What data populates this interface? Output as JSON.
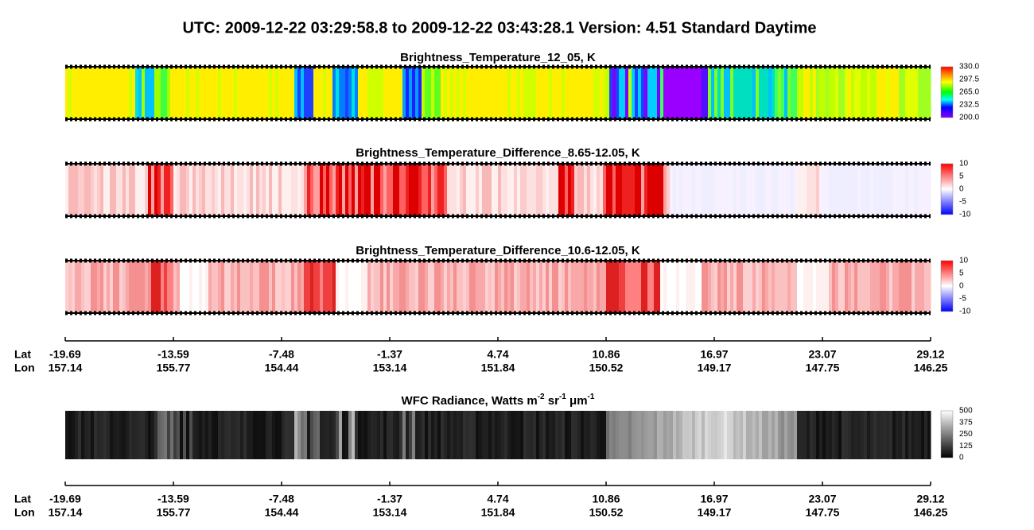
{
  "header": {
    "title": "UTC:  2009-12-22   03:29:58.8  to  2009-12-22   03:43:28.1    Version: 4.51  Standard Daytime"
  },
  "panels": [
    {
      "title": "Brightness_Temperature_12_05, K",
      "colorbar_ticks": [
        "330.0",
        "297.5",
        "265.0",
        "232.5",
        "200.0"
      ]
    },
    {
      "title": "Brightness_Temperature_Difference_8.65-12.05, K",
      "colorbar_ticks": [
        "10",
        "5",
        "0",
        "-5",
        "-10"
      ]
    },
    {
      "title": "Brightness_Temperature_Difference_10.6-12.05, K",
      "colorbar_ticks": [
        "10",
        "5",
        "0",
        "-5",
        "-10"
      ]
    },
    {
      "title_parts": [
        "WFC Radiance, Watts m",
        "-2",
        " sr",
        "-1",
        " μm",
        "-1"
      ],
      "colorbar_ticks": [
        "500",
        "375",
        "250",
        "125",
        "0"
      ]
    }
  ],
  "axis": {
    "lat_label": "Lat",
    "lon_label": "Lon",
    "lat": [
      "-19.69",
      "-13.59",
      "-7.48",
      "-1.37",
      "4.74",
      "10.86",
      "16.97",
      "23.07",
      "29.12"
    ],
    "lon": [
      "157.14",
      "155.77",
      "154.44",
      "153.14",
      "151.84",
      "150.52",
      "149.17",
      "147.75",
      "146.25"
    ]
  }
}
